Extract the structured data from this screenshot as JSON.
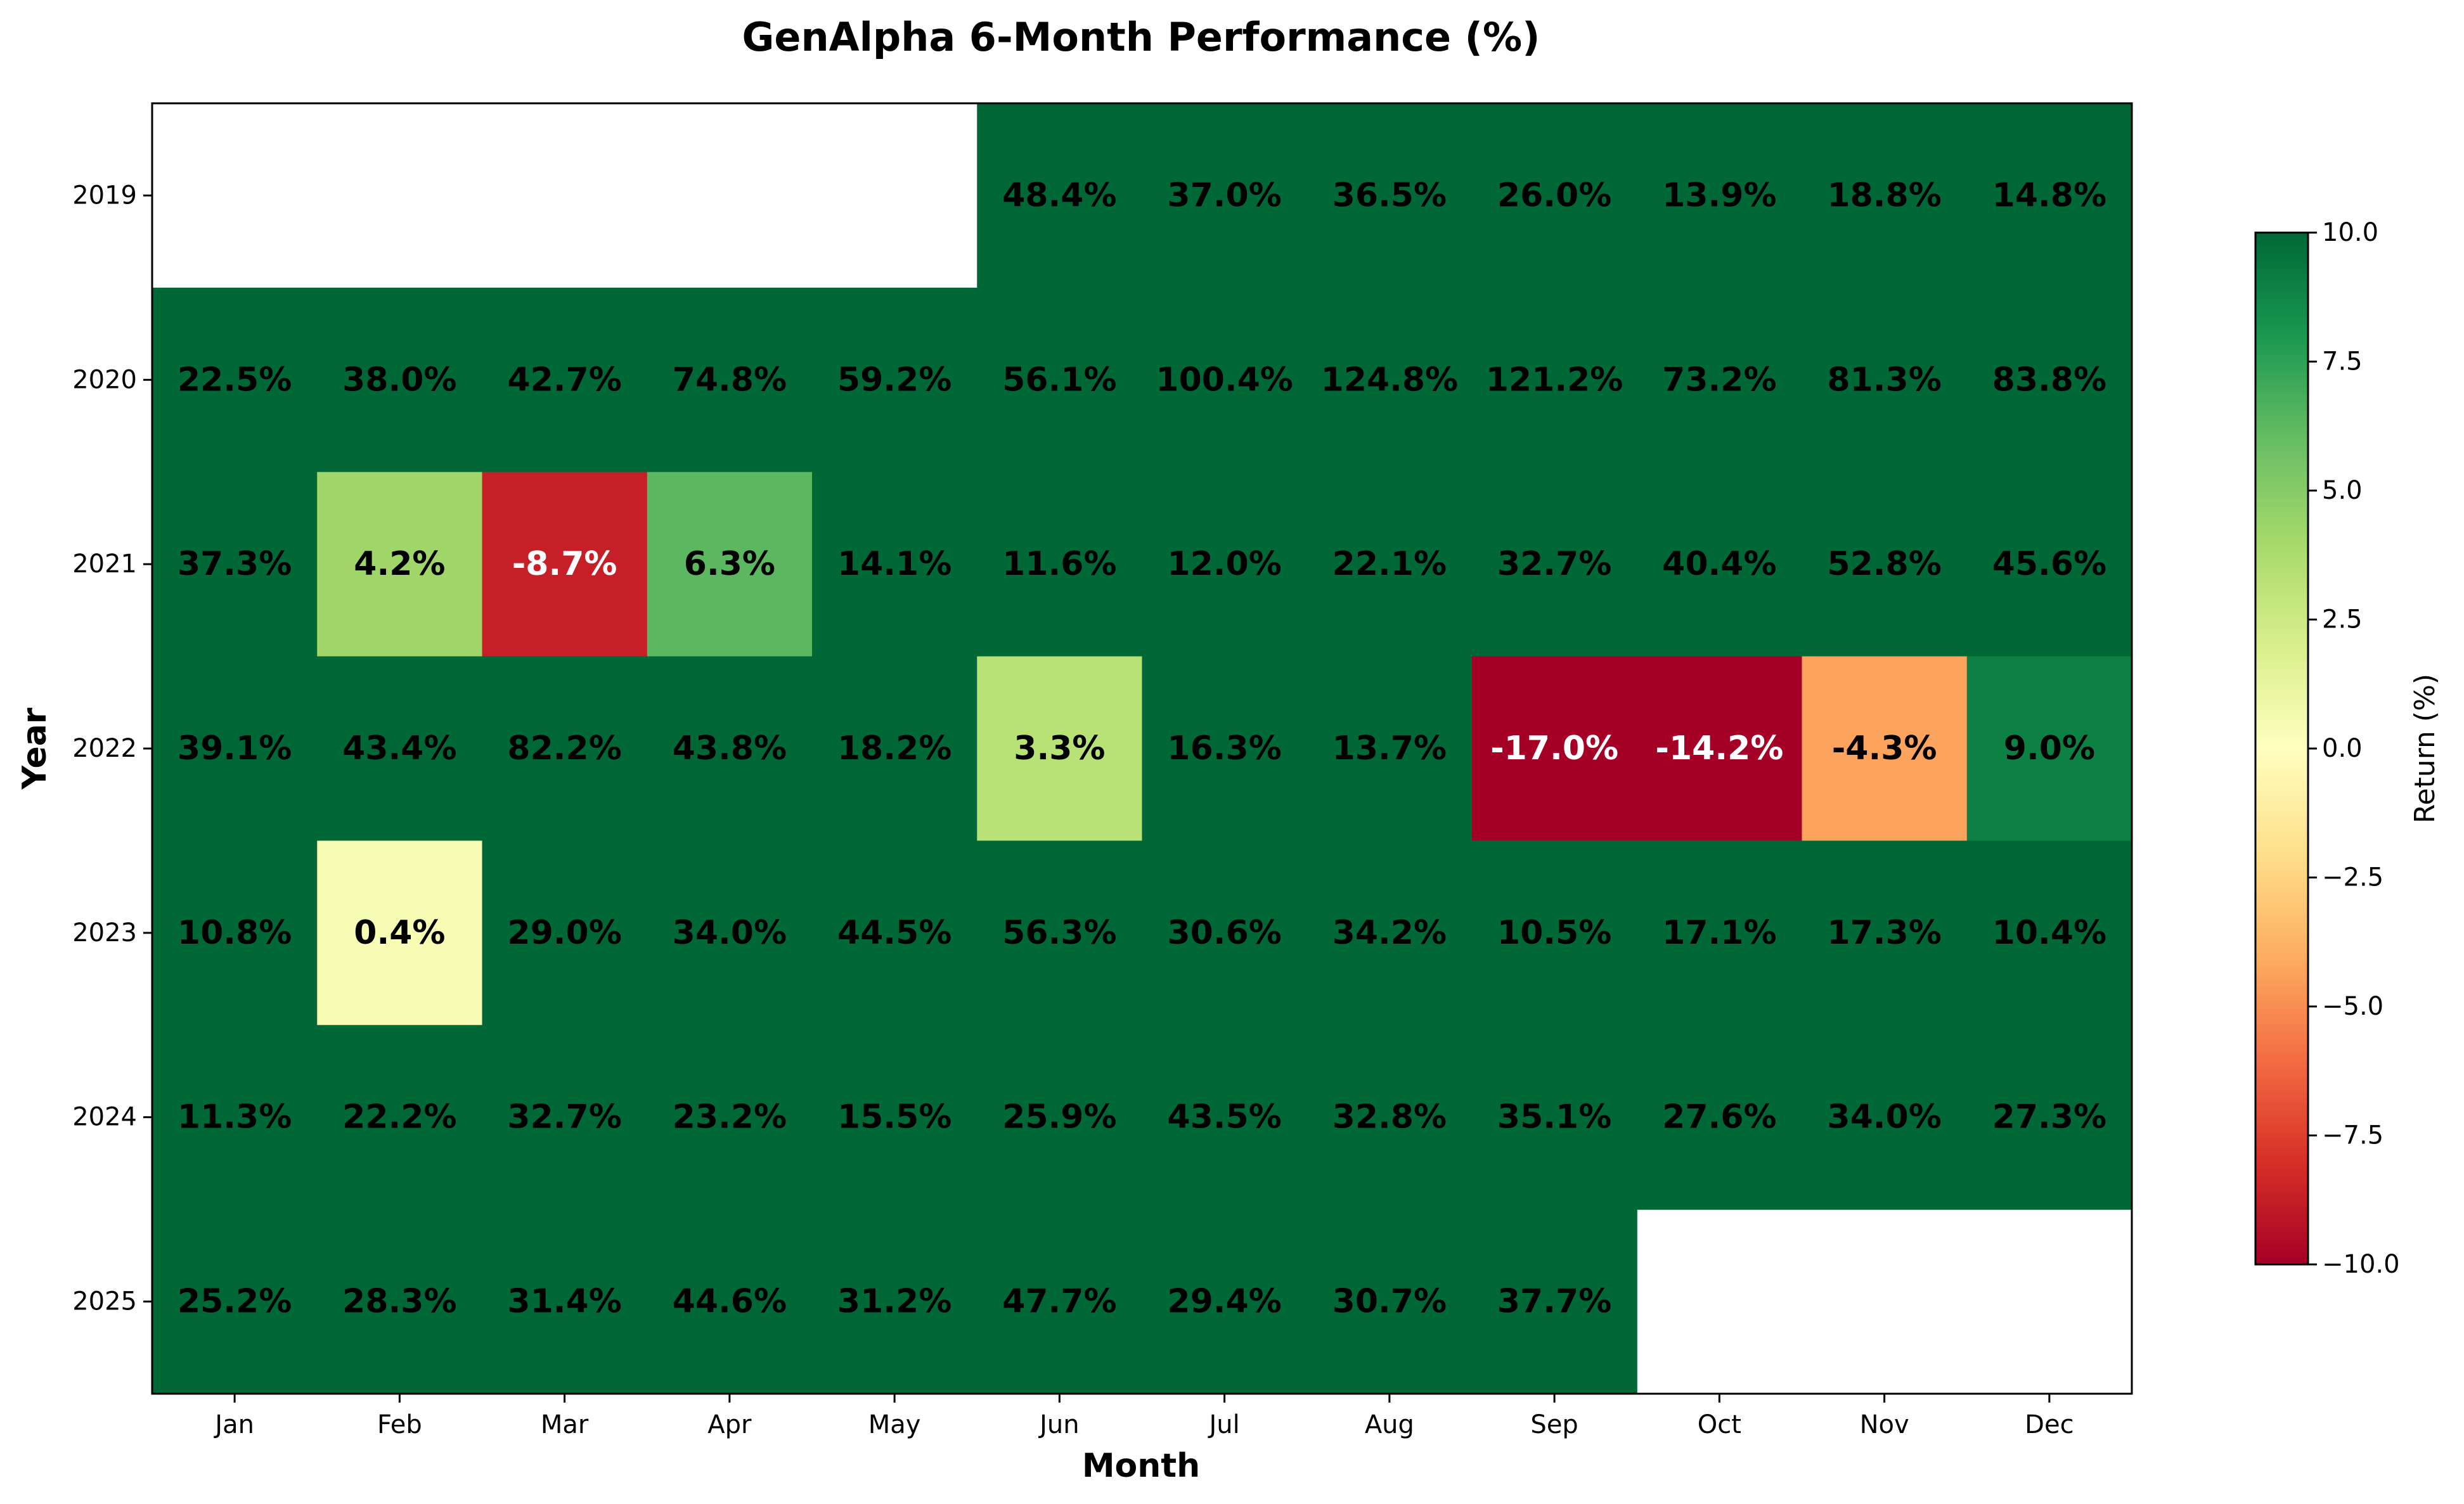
{
  "chart_data": {
    "type": "heatmap",
    "title": "GenAlpha 6-Month Performance (%)",
    "xlabel": "Month",
    "ylabel": "Year",
    "x": [
      "Jan",
      "Feb",
      "Mar",
      "Apr",
      "May",
      "Jun",
      "Jul",
      "Aug",
      "Sep",
      "Oct",
      "Nov",
      "Dec"
    ],
    "y": [
      "2019",
      "2020",
      "2021",
      "2022",
      "2023",
      "2024",
      "2025"
    ],
    "values": [
      [
        null,
        null,
        null,
        null,
        null,
        48.4,
        37.0,
        36.5,
        26.0,
        13.9,
        18.8,
        14.8
      ],
      [
        22.5,
        38.0,
        42.7,
        74.8,
        59.2,
        56.1,
        100.4,
        124.8,
        121.2,
        73.2,
        81.3,
        83.8
      ],
      [
        37.3,
        4.2,
        -8.7,
        6.3,
        14.1,
        11.6,
        12.0,
        22.1,
        32.7,
        40.4,
        52.8,
        45.6
      ],
      [
        39.1,
        43.4,
        82.2,
        43.8,
        18.2,
        3.3,
        16.3,
        13.7,
        -17.0,
        -14.2,
        -4.3,
        9.0
      ],
      [
        10.8,
        0.4,
        29.0,
        34.0,
        44.5,
        56.3,
        30.6,
        34.2,
        10.5,
        17.1,
        17.3,
        10.4
      ],
      [
        11.3,
        22.2,
        32.7,
        23.2,
        15.5,
        25.9,
        43.5,
        32.8,
        35.1,
        27.6,
        34.0,
        27.3
      ],
      [
        25.2,
        28.3,
        31.4,
        44.6,
        31.2,
        47.7,
        29.4,
        30.7,
        37.7,
        null,
        null,
        null
      ]
    ],
    "value_format": "{v}%",
    "colormap": "RdYlGn",
    "vmin": -10,
    "vmax": 10,
    "colorbar": {
      "label": "Return (%)",
      "ticks": [
        "10.0",
        "7.5",
        "5.0",
        "2.5",
        "0.0",
        "−2.5",
        "−5.0",
        "−7.5",
        "−10.0"
      ],
      "tick_values": [
        10,
        7.5,
        5,
        2.5,
        0,
        -2.5,
        -5,
        -7.5,
        -10
      ]
    },
    "grid": false
  }
}
